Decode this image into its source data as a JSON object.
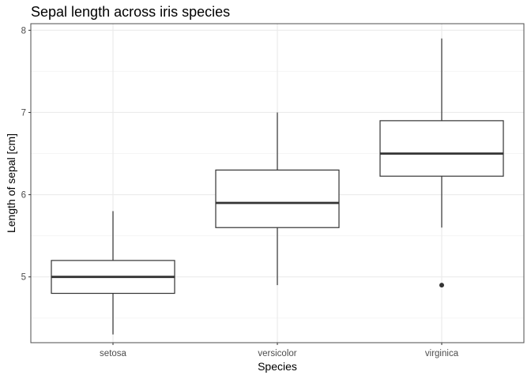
{
  "chart_data": {
    "type": "boxplot",
    "title": "Sepal length across iris species",
    "xlabel": "Species",
    "ylabel": "Length of sepal [cm]",
    "categories": [
      "setosa",
      "versicolor",
      "virginica"
    ],
    "ylim": [
      4.2,
      8.08
    ],
    "yticks": [
      5,
      6,
      7,
      8
    ],
    "grid": true,
    "boxes": [
      {
        "category": "setosa",
        "whisker_low": 4.3,
        "q1": 4.8,
        "median": 5.0,
        "q3": 5.2,
        "whisker_high": 5.8,
        "outliers": []
      },
      {
        "category": "versicolor",
        "whisker_low": 4.9,
        "q1": 5.6,
        "median": 5.9,
        "q3": 6.3,
        "whisker_high": 7.0,
        "outliers": []
      },
      {
        "category": "virginica",
        "whisker_low": 5.6,
        "q1": 6.225,
        "median": 6.5,
        "q3": 6.9,
        "whisker_high": 7.9,
        "outliers": [
          4.9
        ]
      }
    ],
    "colors": {
      "panel_border": "#4d4d4d",
      "grid_major": "#ebebeb",
      "grid_minor": "#f5f5f5",
      "box_line": "#333333"
    }
  }
}
